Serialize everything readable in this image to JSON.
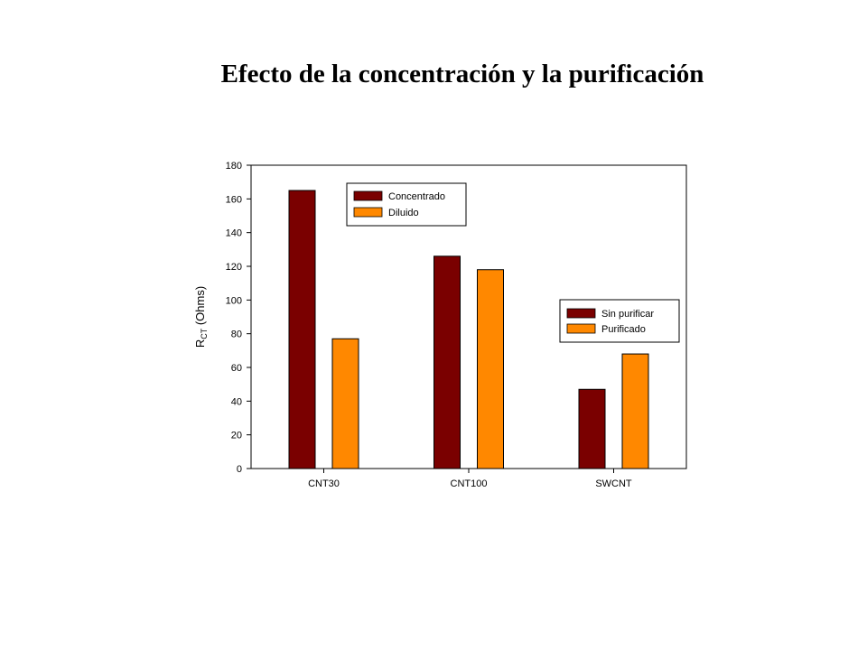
{
  "title": "Efecto de la concentración y la purificación",
  "colors": {
    "dark": "#7a0000",
    "light": "#ff8800"
  },
  "legends": [
    {
      "entries": [
        {
          "label": "Concentrado",
          "color": "#7a0000"
        },
        {
          "label": "Diluido",
          "color": "#ff8800"
        }
      ]
    },
    {
      "entries": [
        {
          "label": "Sin purificar",
          "color": "#7a0000"
        },
        {
          "label": "Purificado",
          "color": "#ff8800"
        }
      ]
    }
  ],
  "chart_data": {
    "type": "bar",
    "title": "",
    "ylabel_main": "R",
    "ylabel_sub": "CT",
    "ylabel_rest": " (Ohms)",
    "ylim": [
      0,
      180
    ],
    "yticks": [
      0,
      20,
      40,
      60,
      80,
      100,
      120,
      140,
      160,
      180
    ],
    "categories": [
      "CNT30",
      "CNT100",
      "SWCNT"
    ],
    "series": [
      {
        "values": [
          165,
          126,
          47
        ],
        "color": "#7a0000"
      },
      {
        "values": [
          77,
          118,
          68
        ],
        "color": "#ff8800"
      }
    ],
    "grid": false
  }
}
